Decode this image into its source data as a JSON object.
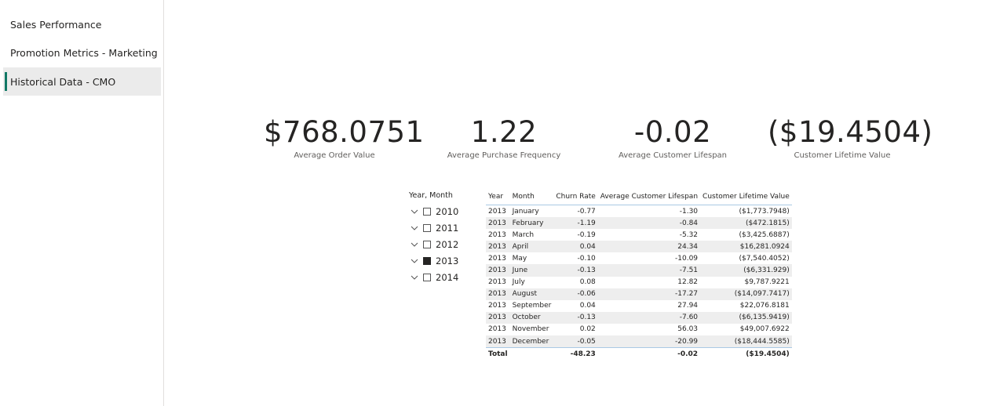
{
  "nav": {
    "items": [
      {
        "label": "Sales Performance"
      },
      {
        "label": "Promotion Metrics - Marketing"
      },
      {
        "label": "Historical Data - CMO"
      }
    ]
  },
  "kpis": [
    {
      "value": "$768.0751",
      "label": "Average Order Value"
    },
    {
      "value": "1.22",
      "label": "Average Purchase Frequency"
    },
    {
      "value": "-0.02",
      "label": "Average Customer Lifespan"
    },
    {
      "value": "($19.4504)",
      "label": "Customer Lifetime Value"
    }
  ],
  "slicer": {
    "title": "Year, Month",
    "items": [
      {
        "label": "2010",
        "checked": false
      },
      {
        "label": "2011",
        "checked": false
      },
      {
        "label": "2012",
        "checked": false
      },
      {
        "label": "2013",
        "checked": true
      },
      {
        "label": "2014",
        "checked": false
      }
    ]
  },
  "table": {
    "headers": [
      "Year",
      "Month",
      "Churn Rate",
      "Average Customer Lifespan",
      "Customer Lifetime Value"
    ],
    "rows": [
      [
        "2013",
        "January",
        "-0.77",
        "-1.30",
        "($1,773.7948)"
      ],
      [
        "2013",
        "February",
        "-1.19",
        "-0.84",
        "($472.1815)"
      ],
      [
        "2013",
        "March",
        "-0.19",
        "-5.32",
        "($3,425.6887)"
      ],
      [
        "2013",
        "April",
        "0.04",
        "24.34",
        "$16,281.0924"
      ],
      [
        "2013",
        "May",
        "-0.10",
        "-10.09",
        "($7,540.4052)"
      ],
      [
        "2013",
        "June",
        "-0.13",
        "-7.51",
        "($6,331.929)"
      ],
      [
        "2013",
        "July",
        "0.08",
        "12.82",
        "$9,787.9221"
      ],
      [
        "2013",
        "August",
        "-0.06",
        "-17.27",
        "($14,097.7417)"
      ],
      [
        "2013",
        "September",
        "0.04",
        "27.94",
        "$22,076.8181"
      ],
      [
        "2013",
        "October",
        "-0.13",
        "-7.60",
        "($6,135.9419)"
      ],
      [
        "2013",
        "November",
        "0.02",
        "56.03",
        "$49,007.6922"
      ],
      [
        "2013",
        "December",
        "-0.05",
        "-20.99",
        "($18,444.5585)"
      ]
    ],
    "total": [
      "Total",
      "",
      "-48.23",
      "-0.02",
      "($19.4504)"
    ]
  }
}
